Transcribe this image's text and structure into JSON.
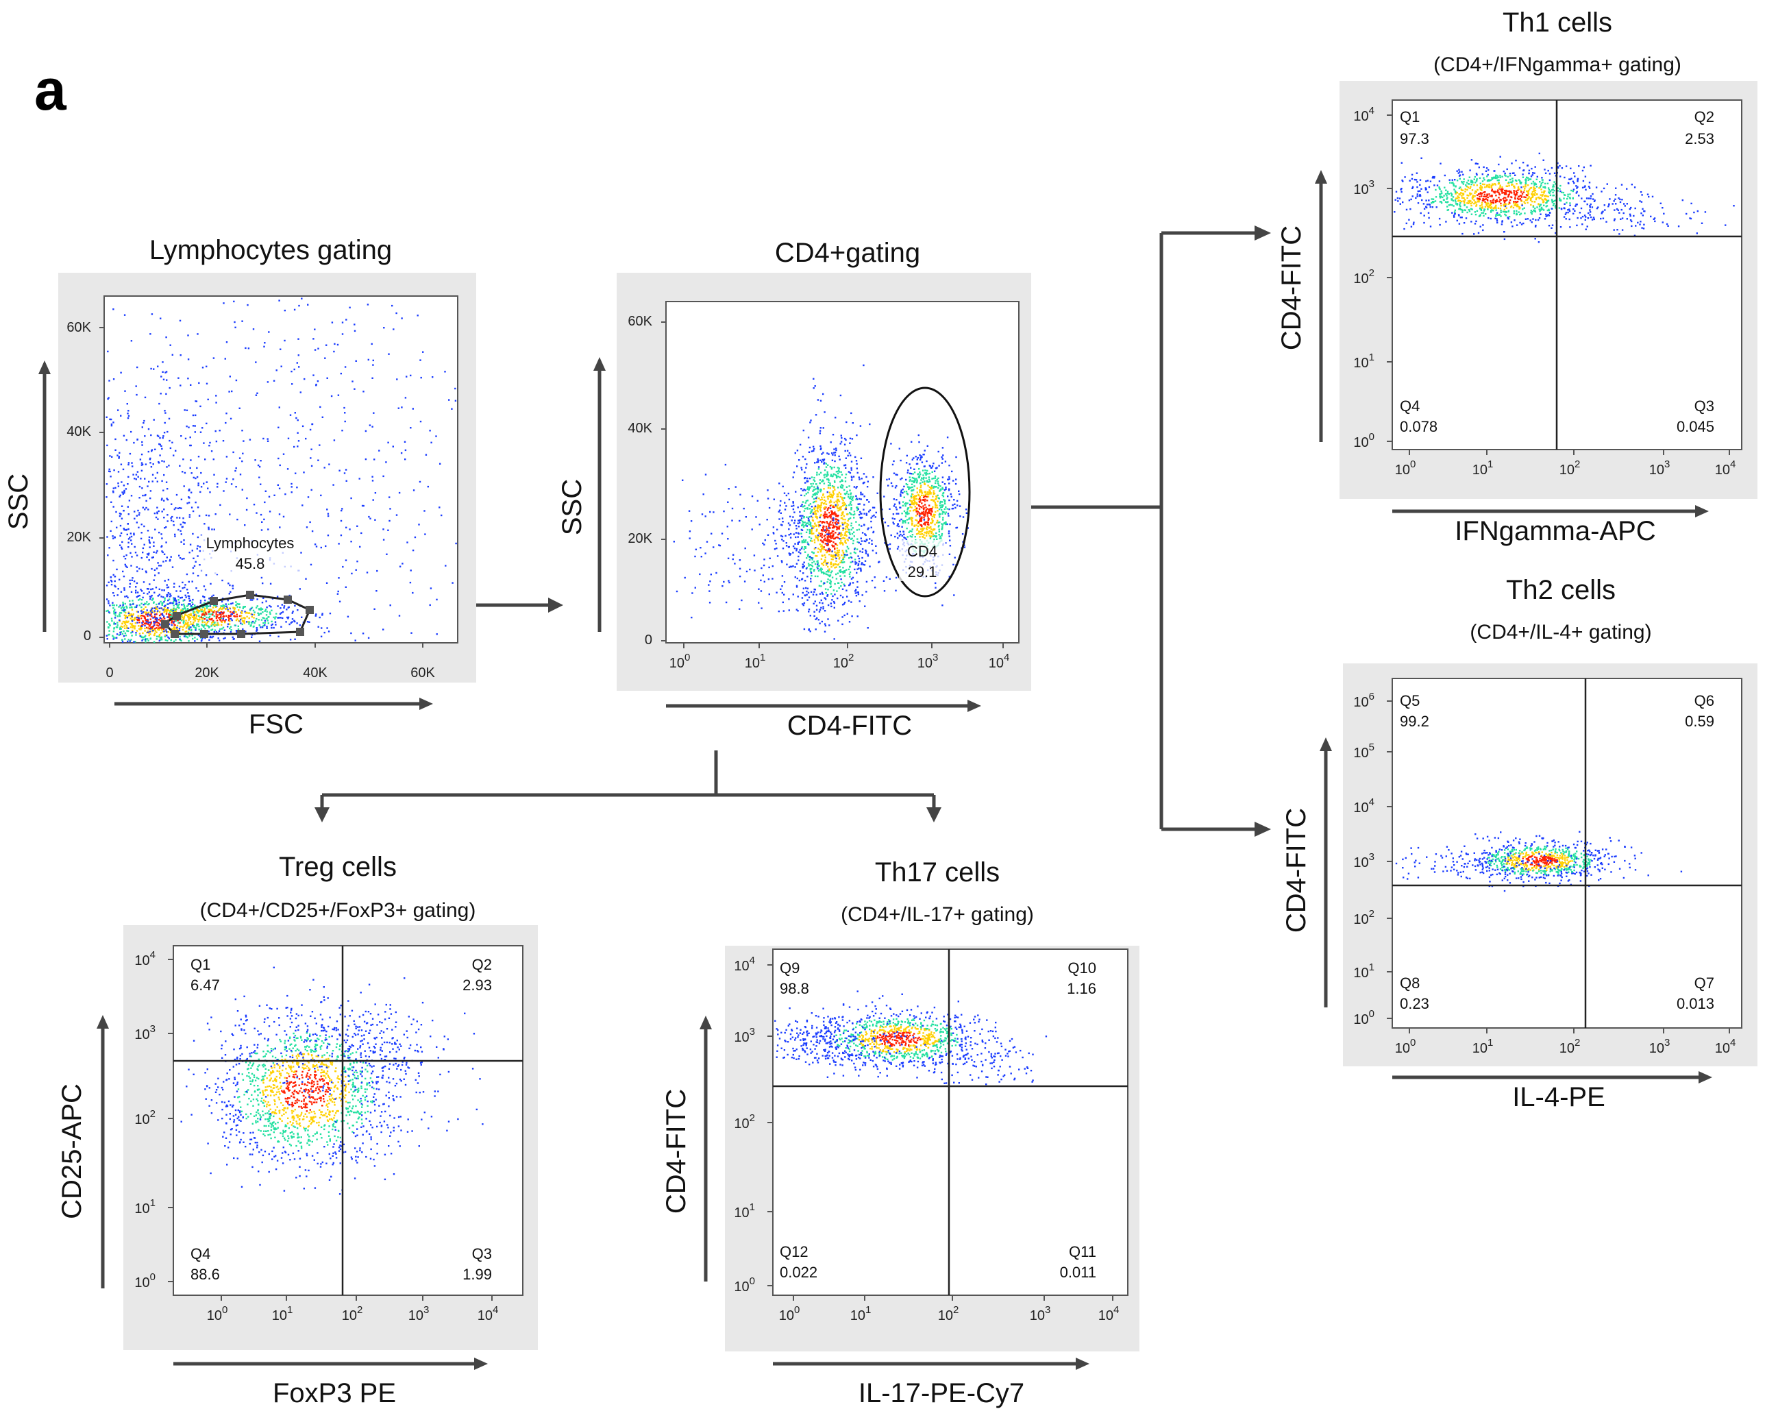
{
  "panel_letter": "a",
  "panels": {
    "lymph": {
      "title": "Lymphocytes gating",
      "x_label": "FSC",
      "y_label": "SSC",
      "x_ticks": [
        "0",
        "20K",
        "40K",
        "60K"
      ],
      "y_ticks": [
        "0",
        "20K",
        "40K",
        "60K"
      ],
      "gate": {
        "name": "Lymphocytes",
        "value": "45.8"
      }
    },
    "cd4": {
      "title": "CD4+gating",
      "x_label": "CD4-FITC",
      "y_label": "SSC",
      "y_ticks": [
        "0",
        "20K",
        "40K",
        "60K"
      ],
      "gate": {
        "name": "CD4",
        "value": "29.1"
      }
    },
    "th1": {
      "title": "Th1 cells",
      "subtitle": "(CD4+/IFNgamma+ gating)",
      "x_label": "IFNgamma-APC",
      "y_label": "CD4-FITC",
      "quadrants": {
        "ul": {
          "name": "Q1",
          "value": "97.3"
        },
        "ur": {
          "name": "Q2",
          "value": "2.53"
        },
        "lr": {
          "name": "Q3",
          "value": "0.045"
        },
        "ll": {
          "name": "Q4",
          "value": "0.078"
        }
      }
    },
    "th2": {
      "title": "Th2 cells",
      "subtitle": "(CD4+/IL-4+ gating)",
      "x_label": "IL-4-PE",
      "y_label": "CD4-FITC",
      "quadrants": {
        "ul": {
          "name": "Q5",
          "value": "99.2"
        },
        "ur": {
          "name": "Q6",
          "value": "0.59"
        },
        "lr": {
          "name": "Q7",
          "value": "0.013"
        },
        "ll": {
          "name": "Q8",
          "value": "0.23"
        }
      }
    },
    "treg": {
      "title": "Treg cells",
      "subtitle": "(CD4+/CD25+/FoxP3+ gating)",
      "x_label": "FoxP3 PE",
      "y_label": "CD25-APC",
      "quadrants": {
        "ul": {
          "name": "Q1",
          "value": "6.47"
        },
        "ur": {
          "name": "Q2",
          "value": "2.93"
        },
        "lr": {
          "name": "Q3",
          "value": "1.99"
        },
        "ll": {
          "name": "Q4",
          "value": "88.6"
        }
      }
    },
    "th17": {
      "title": "Th17 cells",
      "subtitle": "(CD4+/IL-17+ gating)",
      "x_label": "IL-17-PE-Cy7",
      "y_label": "CD4-FITC",
      "quadrants": {
        "ul": {
          "name": "Q9",
          "value": "98.8"
        },
        "ur": {
          "name": "Q10",
          "value": "1.16"
        },
        "lr": {
          "name": "Q11",
          "value": "0.011"
        },
        "ll": {
          "name": "Q12",
          "value": "0.022"
        }
      }
    }
  },
  "colors": {
    "density_low": "#1a3cff",
    "density_mid": "#22e0a0",
    "density_high": "#ffd000",
    "density_peak": "#ff2000",
    "panel_background": "#e8e8e8"
  }
}
